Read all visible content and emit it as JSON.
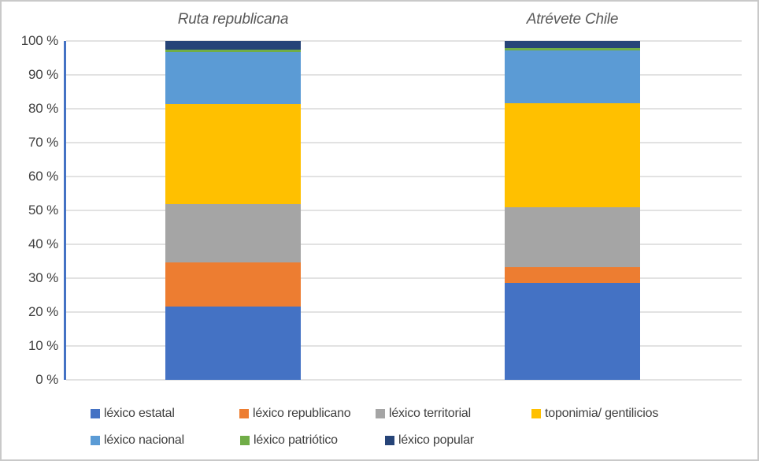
{
  "chart_data": {
    "type": "bar",
    "variant": "100-percent-stacked-column",
    "title": "",
    "xlabel": "",
    "ylabel": "",
    "categories": [
      "Ruta republicana",
      "Atrévete Chile"
    ],
    "series": [
      {
        "name": "léxico estatal",
        "color": "#4472C4",
        "values": [
          21.6,
          28.5
        ]
      },
      {
        "name": "léxico republicano",
        "color": "#ED7D31",
        "values": [
          13.1,
          4.8
        ]
      },
      {
        "name": "léxico territorial",
        "color": "#A5A5A5",
        "values": [
          17.2,
          17.7
        ]
      },
      {
        "name": "toponimia/ gentilicios",
        "color": "#FFC000",
        "values": [
          29.4,
          30.6
        ]
      },
      {
        "name": "léxico nacional",
        "color": "#5B9BD5",
        "values": [
          15.4,
          15.7
        ]
      },
      {
        "name": "léxico patriótico",
        "color": "#70AD47",
        "values": [
          0.7,
          0.7
        ]
      },
      {
        "name": "léxico popular",
        "color": "#264478",
        "values": [
          2.6,
          2.0
        ]
      }
    ],
    "y_axis": {
      "min": 0,
      "max": 100,
      "step": 10,
      "tick_labels": [
        "0 %",
        "10 %",
        "20 %",
        "30 %",
        "40 %",
        "50 %",
        "60 %",
        "70 %",
        "80 %",
        "90 %",
        "100 %"
      ]
    },
    "ylim": [
      0,
      100
    ],
    "grid": true,
    "legend_position": "bottom"
  },
  "colors": {
    "axis_line": "#4472C4",
    "gridline": "#E2E2E2",
    "tick_text": "#404040",
    "column_title_text": "#595959",
    "legend_text": "#404040",
    "chart_border": "#C9C9C9",
    "background": "#FFFFFF"
  }
}
